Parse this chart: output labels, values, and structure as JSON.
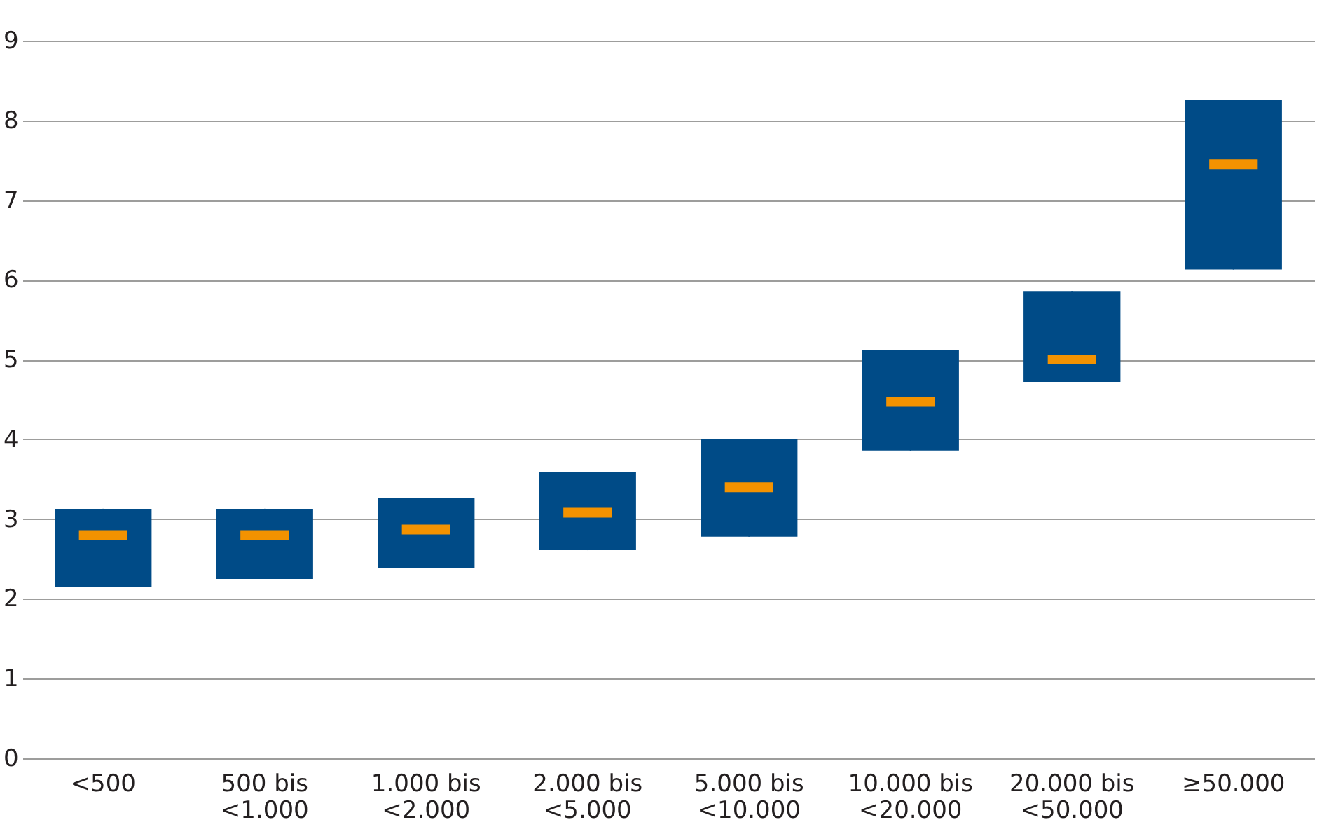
{
  "chart_data": {
    "type": "box",
    "categories": [
      "<500",
      "500 bis <1.000",
      "1.000 bis <2.000",
      "2.000 bis <5.000",
      "5.000 bis <10.000",
      "10.000 bis <20.000",
      "20.000 bis <50.000",
      "≥50.000"
    ],
    "series": [
      {
        "color": "#004b87",
        "boxes": [
          {
            "low": 2.15,
            "q1": 2.15,
            "median": 2.8,
            "q3": 3.13,
            "high": 3.13
          },
          {
            "low": 2.25,
            "q1": 2.25,
            "median": 2.8,
            "q3": 3.13,
            "high": 3.13
          },
          {
            "low": 2.39,
            "q1": 2.39,
            "median": 2.87,
            "q3": 3.26,
            "high": 3.26
          },
          {
            "low": 2.61,
            "q1": 2.61,
            "median": 3.08,
            "q3": 3.59,
            "high": 3.59
          },
          {
            "low": 2.78,
            "q1": 2.78,
            "median": 3.4,
            "q3": 4.0,
            "high": 4.0
          },
          {
            "low": 3.86,
            "q1": 3.86,
            "median": 4.47,
            "q3": 5.12,
            "high": 5.12
          },
          {
            "low": 4.72,
            "q1": 4.72,
            "median": 5.0,
            "q3": 5.86,
            "high": 5.86
          },
          {
            "low": 6.13,
            "q1": 6.13,
            "median": 7.45,
            "q3": 8.26,
            "high": 8.26
          }
        ]
      }
    ],
    "ylim": [
      0,
      9
    ],
    "yticks": [
      0,
      1,
      2,
      3,
      4,
      5,
      6,
      7,
      8,
      9
    ],
    "grid": "y"
  }
}
